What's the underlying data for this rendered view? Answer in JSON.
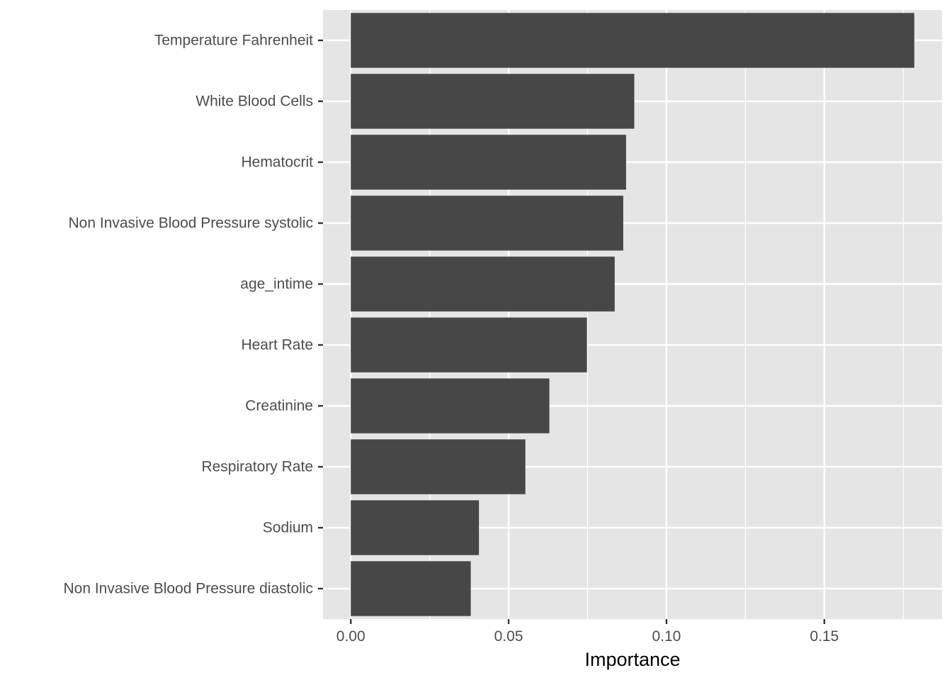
{
  "chart_data": {
    "type": "bar",
    "orientation": "horizontal",
    "categories": [
      "Temperature Fahrenheit",
      "White Blood Cells",
      "Hematocrit",
      "Non Invasive Blood Pressure systolic",
      "age_intime",
      "Heart Rate",
      "Creatinine",
      "Respiratory Rate",
      "Sodium",
      "Non Invasive Blood Pressure diastolic"
    ],
    "values": [
      0.1785,
      0.0898,
      0.0872,
      0.0863,
      0.0836,
      0.0748,
      0.0629,
      0.0553,
      0.0406,
      0.038
    ],
    "title": "",
    "xlabel": "Importance",
    "ylabel": "",
    "xlim": [
      -0.0088,
      0.1873
    ],
    "x_ticks": [
      0.0,
      0.05,
      0.1,
      0.15
    ],
    "x_tick_labels": [
      "0.00",
      "0.05",
      "0.10",
      "0.15"
    ],
    "grid": true,
    "legend": "none",
    "colors": {
      "bar": "#474747",
      "panel": "#e5e5e5",
      "grid": "#ffffff",
      "tick_text": "#4d4d4d",
      "tick_mark": "#333333",
      "axis_title": "#000000"
    }
  }
}
